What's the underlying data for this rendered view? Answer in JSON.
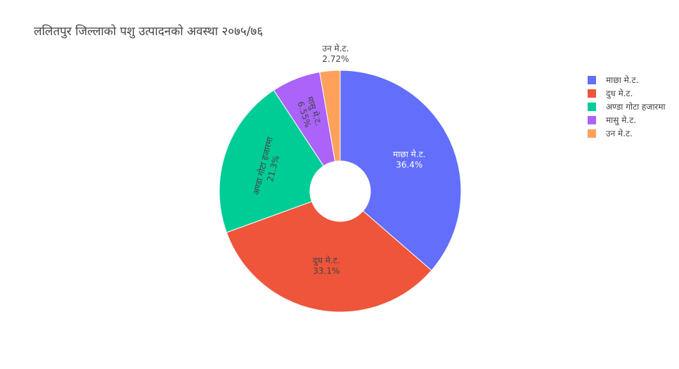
{
  "chart_data": {
    "type": "pie",
    "title": "ललितपुर जिल्लाको पशु उत्पादनको अवस्था २०७५/७६",
    "hole": true,
    "categories": [
      "माछा मे.ट.",
      "दुध मे.ट.",
      "अण्डा गोटा हजारमा",
      "मासु मे.ट.",
      "उन मे.ट."
    ],
    "percent_labels": [
      "36.4%",
      "33.1%",
      "21.3%",
      "6.55%",
      "2.72%"
    ],
    "values": [
      36.4,
      33.1,
      21.3,
      6.55,
      2.72
    ],
    "colors": [
      "#636efa",
      "#ef553b",
      "#00cc96",
      "#ab63fa",
      "#ffa15a"
    ],
    "legend_order": [
      0,
      1,
      2,
      3,
      4
    ],
    "legend_placement": "top-right",
    "direction": "clockwise"
  }
}
